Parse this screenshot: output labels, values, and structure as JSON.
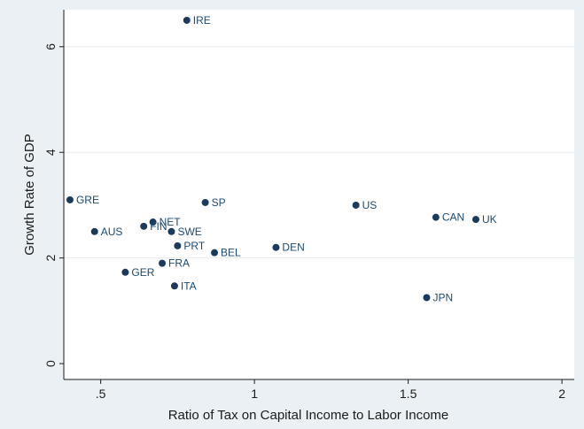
{
  "chart_data": {
    "type": "scatter",
    "title": "",
    "xlabel": "Ratio of Tax on Capital Income to Labor Income",
    "ylabel": "Growth Rate of GDP",
    "xlim": [
      0.38,
      2.04
    ],
    "ylim": [
      -0.3,
      6.7
    ],
    "x_ticks": [
      0.5,
      1,
      1.5,
      2
    ],
    "x_tick_labels": [
      ".5",
      "1",
      "1.5",
      "2"
    ],
    "y_ticks": [
      0,
      2,
      4,
      6
    ],
    "y_tick_labels": [
      "0",
      "2",
      "4",
      "6"
    ],
    "grid": "horizontal",
    "points": [
      {
        "label": "IRE",
        "x": 0.78,
        "y": 6.5
      },
      {
        "label": "GRE",
        "x": 0.4,
        "y": 3.1
      },
      {
        "label": "SP",
        "x": 0.84,
        "y": 3.05
      },
      {
        "label": "US",
        "x": 1.33,
        "y": 3.0
      },
      {
        "label": "CAN",
        "x": 1.59,
        "y": 2.77
      },
      {
        "label": "UK",
        "x": 1.72,
        "y": 2.73
      },
      {
        "label": "NET",
        "x": 0.67,
        "y": 2.68
      },
      {
        "label": "FIN",
        "x": 0.64,
        "y": 2.6
      },
      {
        "label": "AUS",
        "x": 0.48,
        "y": 2.5
      },
      {
        "label": "SWE",
        "x": 0.73,
        "y": 2.5
      },
      {
        "label": "PRT",
        "x": 0.75,
        "y": 2.23
      },
      {
        "label": "DEN",
        "x": 1.07,
        "y": 2.2
      },
      {
        "label": "BEL",
        "x": 0.87,
        "y": 2.1
      },
      {
        "label": "FRA",
        "x": 0.7,
        "y": 1.9
      },
      {
        "label": "GER",
        "x": 0.58,
        "y": 1.73
      },
      {
        "label": "ITA",
        "x": 0.74,
        "y": 1.47
      },
      {
        "label": "JPN",
        "x": 1.56,
        "y": 1.25
      }
    ]
  },
  "colors": {
    "outer_background": "#eaf0f3",
    "plot_background": "#ffffff",
    "gridline": "#e6ecef",
    "marker": "#1b3a5c",
    "label": "#1d4a6e",
    "axis": "#1b1b1b"
  }
}
